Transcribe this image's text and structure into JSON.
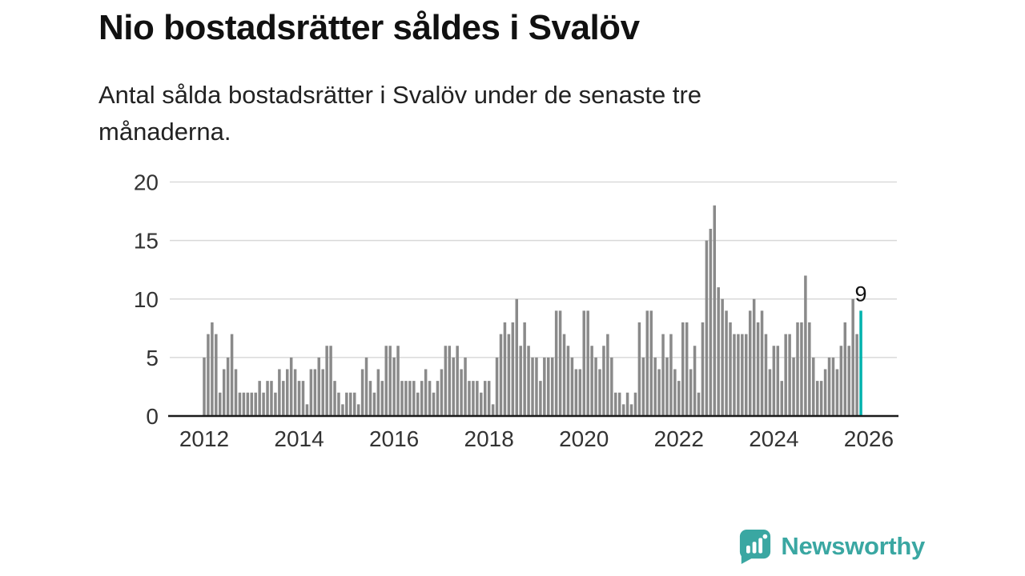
{
  "header": {
    "title": "Nio bostadsrätter såldes i Svalöv",
    "subtitle": "Antal sålda bostadsrätter i Svalöv under de senaste tre månaderna."
  },
  "chart_data": {
    "type": "bar",
    "title": "Nio bostadsrätter såldes i Svalöv",
    "subtitle": "Antal sålda bostadsrätter i Svalöv under de senaste tre månaderna.",
    "xlabel": "",
    "ylabel": "",
    "freq": "monthly",
    "start_year": 2012,
    "ylim": [
      0,
      20
    ],
    "yticks": [
      0,
      5,
      10,
      15,
      20
    ],
    "xticks": [
      2012,
      2014,
      2016,
      2018,
      2020,
      2022,
      2024,
      2026
    ],
    "grid": "horizontal",
    "annotation": "9",
    "highlight_last": true,
    "values": [
      5,
      7,
      8,
      7,
      2,
      4,
      5,
      7,
      4,
      2,
      2,
      2,
      2,
      2,
      3,
      2,
      3,
      3,
      2,
      4,
      3,
      4,
      5,
      4,
      3,
      3,
      1,
      4,
      4,
      5,
      4,
      6,
      6,
      3,
      2,
      1,
      2,
      2,
      2,
      1,
      4,
      5,
      3,
      2,
      4,
      3,
      6,
      6,
      5,
      6,
      3,
      3,
      3,
      3,
      2,
      3,
      4,
      3,
      2,
      3,
      4,
      6,
      6,
      5,
      6,
      4,
      5,
      3,
      3,
      3,
      2,
      3,
      3,
      1,
      5,
      7,
      8,
      7,
      8,
      10,
      6,
      8,
      6,
      5,
      5,
      3,
      5,
      5,
      5,
      9,
      9,
      7,
      6,
      5,
      4,
      4,
      9,
      9,
      6,
      5,
      4,
      6,
      7,
      5,
      2,
      2,
      1,
      2,
      1,
      2,
      8,
      5,
      9,
      9,
      5,
      4,
      7,
      5,
      7,
      4,
      3,
      8,
      8,
      4,
      6,
      2,
      8,
      15,
      16,
      18,
      11,
      10,
      9,
      8,
      7,
      7,
      7,
      7,
      9,
      10,
      8,
      9,
      7,
      4,
      6,
      6,
      3,
      7,
      7,
      5,
      8,
      8,
      12,
      8,
      5,
      3,
      3,
      4,
      5,
      5,
      4,
      6,
      8,
      6,
      10,
      7,
      9
    ],
    "colors": {
      "bar": "#8a8a8a",
      "highlight": "#00b2ad",
      "grid": "#d9d9d9",
      "axis": "#1a1a1a",
      "tick_label": "#333333",
      "annotation": "#111111"
    }
  },
  "footer": {
    "brand": "Newsworthy",
    "brand_color": "#3aa7a2"
  }
}
